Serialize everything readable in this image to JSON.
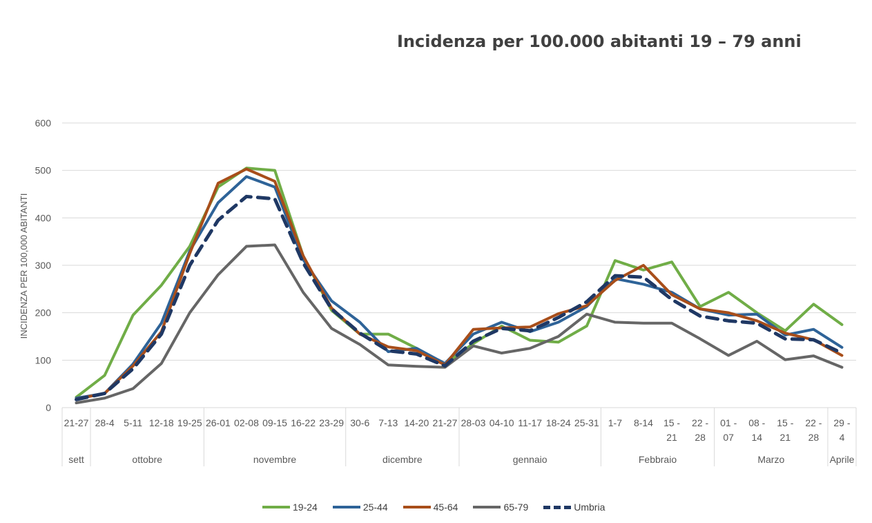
{
  "chart_data": {
    "type": "line",
    "title": "Incidenza per 100.000 abitanti 19 – 79 anni",
    "ylabel": "INCIDENZA PER 100,000 ABITANTI",
    "xlabel": "",
    "ylim": [
      0,
      600
    ],
    "yticks": [
      0,
      100,
      200,
      300,
      400,
      500,
      600
    ],
    "grid": true,
    "legend_position": "bottom",
    "categories": [
      "21-27",
      "28-4",
      "5-11",
      "12-18",
      "19-25",
      "26-01",
      "02-08",
      "09-15",
      "16-22",
      "23-29",
      "30-6",
      "7-13",
      "14-20",
      "21-27",
      "28-03",
      "04-10",
      "11-17",
      "18-24",
      "25-31",
      "1-7",
      "8-14",
      "15 - 21",
      "22 - 28",
      "01 - 07",
      "08 - 14",
      "15 - 21",
      "22 - 28",
      "29 - 4"
    ],
    "groups": [
      {
        "label": "sett",
        "count": 1
      },
      {
        "label": "ottobre",
        "count": 4
      },
      {
        "label": "novembre",
        "count": 5
      },
      {
        "label": "dicembre",
        "count": 4
      },
      {
        "label": "gennaio",
        "count": 5
      },
      {
        "label": "Febbraio",
        "count": 4
      },
      {
        "label": "Marzo",
        "count": 4
      },
      {
        "label": "Aprile",
        "count": 1
      }
    ],
    "series": [
      {
        "name": "19-24",
        "color": "#70ad47",
        "dashed": false,
        "values": [
          22,
          68,
          195,
          258,
          340,
          465,
          505,
          500,
          320,
          205,
          155,
          155,
          125,
          92,
          135,
          172,
          142,
          138,
          172,
          310,
          290,
          307,
          213,
          243,
          200,
          162,
          218,
          175
        ]
      },
      {
        "name": "25-44",
        "color": "#2e6398",
        "dashed": false,
        "values": [
          20,
          30,
          92,
          178,
          330,
          432,
          487,
          465,
          312,
          225,
          180,
          118,
          125,
          93,
          155,
          180,
          160,
          180,
          213,
          272,
          260,
          243,
          208,
          195,
          197,
          153,
          165,
          127
        ]
      },
      {
        "name": "45-64",
        "color": "#a84e1a",
        "dashed": false,
        "values": [
          18,
          30,
          88,
          160,
          325,
          473,
          503,
          477,
          320,
          210,
          155,
          128,
          120,
          90,
          165,
          168,
          170,
          198,
          215,
          268,
          300,
          238,
          208,
          200,
          183,
          157,
          143,
          110
        ]
      },
      {
        "name": "65-79",
        "color": "#666666",
        "dashed": false,
        "values": [
          10,
          20,
          40,
          93,
          200,
          280,
          340,
          343,
          243,
          167,
          133,
          90,
          87,
          85,
          130,
          115,
          125,
          150,
          197,
          180,
          178,
          178,
          145,
          110,
          140,
          101,
          109,
          85
        ]
      },
      {
        "name": "Umbria",
        "color": "#1f3864",
        "dashed": true,
        "values": [
          17,
          30,
          82,
          155,
          300,
          395,
          445,
          440,
          305,
          208,
          157,
          120,
          113,
          88,
          140,
          167,
          162,
          190,
          223,
          278,
          275,
          228,
          193,
          183,
          178,
          145,
          143,
          115
        ]
      }
    ]
  }
}
